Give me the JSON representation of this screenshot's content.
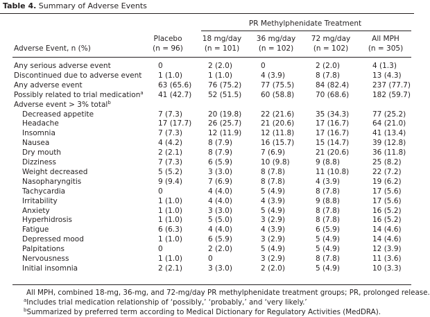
{
  "title": {
    "label": "Table 4.",
    "text": "Summary of Adverse Events"
  },
  "table": {
    "group_header": "PR Methylphenidate Treatment",
    "row_header": "Adverse Event, n (%)",
    "columns": [
      {
        "name": "Placebo",
        "n": "(n = 96)"
      },
      {
        "name": "18 mg/day",
        "n": "(n = 101)"
      },
      {
        "name": "36 mg/day",
        "n": "(n = 102)"
      },
      {
        "name": "72 mg/day",
        "n": "(n = 102)"
      },
      {
        "name": "All MPH",
        "n": "(n = 305)"
      }
    ],
    "rows": [
      {
        "label": "Any serious adverse event",
        "cells": [
          "0",
          "2 (2.0)",
          "0",
          "2 (2.0)",
          "4 (1.3)"
        ]
      },
      {
        "label": "Discontinued due to adverse event",
        "cells": [
          "1 (1.0)",
          "1 (1.0)",
          "4 (3.9)",
          "8 (7.8)",
          "13 (4.3)"
        ]
      },
      {
        "label": "Any adverse event",
        "cells": [
          "63 (65.6)",
          "76 (75.2)",
          "77 (75.5)",
          "84 (82.4)",
          "237 (77.7)"
        ]
      },
      {
        "label": "Possibly related to trial medication",
        "marker": "a",
        "cells": [
          "41 (42.7)",
          "52 (51.5)",
          "60 (58.8)",
          "70 (68.6)",
          "182 (59.7)"
        ]
      }
    ],
    "section": {
      "label": "Adverse event > 3% total",
      "marker": "b",
      "rows": [
        {
          "label": "Decreased appetite",
          "cells": [
            "7 (7.3)",
            "20 (19.8)",
            "22 (21.6)",
            "35 (34.3)",
            "77 (25.2)"
          ]
        },
        {
          "label": "Headache",
          "cells": [
            "17 (17.7)",
            "26 (25.7)",
            "21 (20.6)",
            "17 (16.7)",
            "64 (21.0)"
          ]
        },
        {
          "label": "Insomnia",
          "cells": [
            "7 (7.3)",
            "12 (11.9)",
            "12 (11.8)",
            "17 (16.7)",
            "41 (13.4)"
          ]
        },
        {
          "label": "Nausea",
          "cells": [
            "4 (4.2)",
            "8 (7.9)",
            "16 (15.7)",
            "15 (14.7)",
            "39 (12.8)"
          ]
        },
        {
          "label": "Dry mouth",
          "cells": [
            "2 (2.1)",
            "8 (7.9)",
            "7 (6.9)",
            "21 (20.6)",
            "36 (11.8)"
          ]
        },
        {
          "label": "Dizziness",
          "cells": [
            "7 (7.3)",
            "6 (5.9)",
            "10 (9.8)",
            "9 (8.8)",
            "25 (8.2)"
          ]
        },
        {
          "label": "Weight decreased",
          "cells": [
            "5 (5.2)",
            "3 (3.0)",
            "8 (7.8)",
            "11 (10.8)",
            "22 (7.2)"
          ]
        },
        {
          "label": "Nasopharyngitis",
          "cells": [
            "9 (9.4)",
            "7 (6.9)",
            "8 (7.8)",
            "4 (3.9)",
            "19 (6.2)"
          ]
        },
        {
          "label": "Tachycardia",
          "cells": [
            "0",
            "4 (4.0)",
            "5 (4.9)",
            "8 (7.8)",
            "17 (5.6)"
          ]
        },
        {
          "label": "Irritability",
          "cells": [
            "1 (1.0)",
            "4 (4.0)",
            "4 (3.9)",
            "9 (8.8)",
            "17 (5.6)"
          ]
        },
        {
          "label": "Anxiety",
          "cells": [
            "1 (1.0)",
            "3 (3.0)",
            "5 (4.9)",
            "8 (7.8)",
            "16 (5.2)"
          ]
        },
        {
          "label": "Hyperhidrosis",
          "cells": [
            "1 (1.0)",
            "5 (5.0)",
            "3 (2.9)",
            "8 (7.8)",
            "16 (5.2)"
          ]
        },
        {
          "label": "Fatigue",
          "cells": [
            "6 (6.3)",
            "4 (4.0)",
            "4 (3.9)",
            "6 (5.9)",
            "14 (4.6)"
          ]
        },
        {
          "label": "Depressed mood",
          "cells": [
            "1 (1.0)",
            "6 (5.9)",
            "3 (2.9)",
            "5 (4.9)",
            "14 (4.6)"
          ]
        },
        {
          "label": "Palpitations",
          "cells": [
            "0",
            "2 (2.0)",
            "5 (4.9)",
            "5 (4.9)",
            "12 (3.9)"
          ]
        },
        {
          "label": "Nervousness",
          "cells": [
            "1 (1.0)",
            "0",
            "3 (2.9)",
            "8 (7.8)",
            "11 (3.6)"
          ]
        },
        {
          "label": "Initial insomnia",
          "cells": [
            "2 (2.1)",
            "3 (3.0)",
            "2 (2.0)",
            "5 (4.9)",
            "10 (3.3)"
          ]
        }
      ]
    }
  },
  "footnotes": [
    {
      "text": "All MPH, combined 18-mg, 36-mg, and 72-mg/day PR methylphenidate treatment groups; PR, prolonged release."
    },
    {
      "marker": "a",
      "text": "Includes trial medication relationship of ‘possibly,’ ‘probably,’ and ‘very likely.’"
    },
    {
      "marker": "b",
      "text": "Summarized by preferred term according to Medical Dictionary for Regulatory Activities (MedDRA)."
    }
  ]
}
